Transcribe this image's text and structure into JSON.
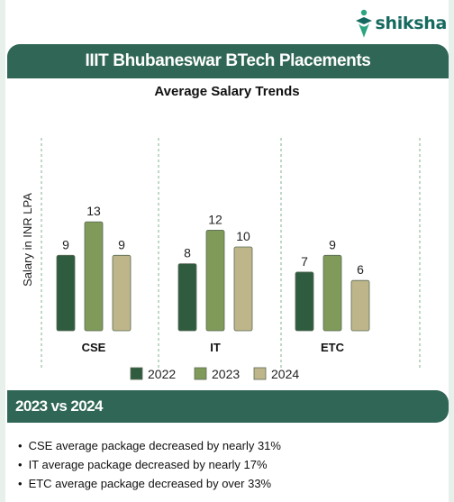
{
  "brand": {
    "name": "shiksha"
  },
  "header": {
    "title": "IIIT Bhubaneswar BTech Placements"
  },
  "chart_data": {
    "type": "bar",
    "title": "Average Salary Trends",
    "xlabel": "",
    "ylabel": "Salary in INR LPA",
    "categories": [
      "CSE",
      "IT",
      "ETC"
    ],
    "series": [
      {
        "name": "2022",
        "values": [
          9,
          8,
          7
        ],
        "color": "#2f5b3f"
      },
      {
        "name": "2023",
        "values": [
          13,
          12,
          9
        ],
        "color": "#7f9a59"
      },
      {
        "name": "2024",
        "values": [
          9,
          10,
          6
        ],
        "color": "#bfb58a"
      }
    ],
    "ylim": [
      0,
      14
    ],
    "grid": false,
    "legend": "bottom",
    "separators": "dashed"
  },
  "comparison": {
    "title": "2023 vs 2024",
    "points": [
      "CSE average package decreased by nearly 31%",
      "IT average package decreased by nearly 17%",
      "ETC average package decreased by over 33%"
    ]
  }
}
